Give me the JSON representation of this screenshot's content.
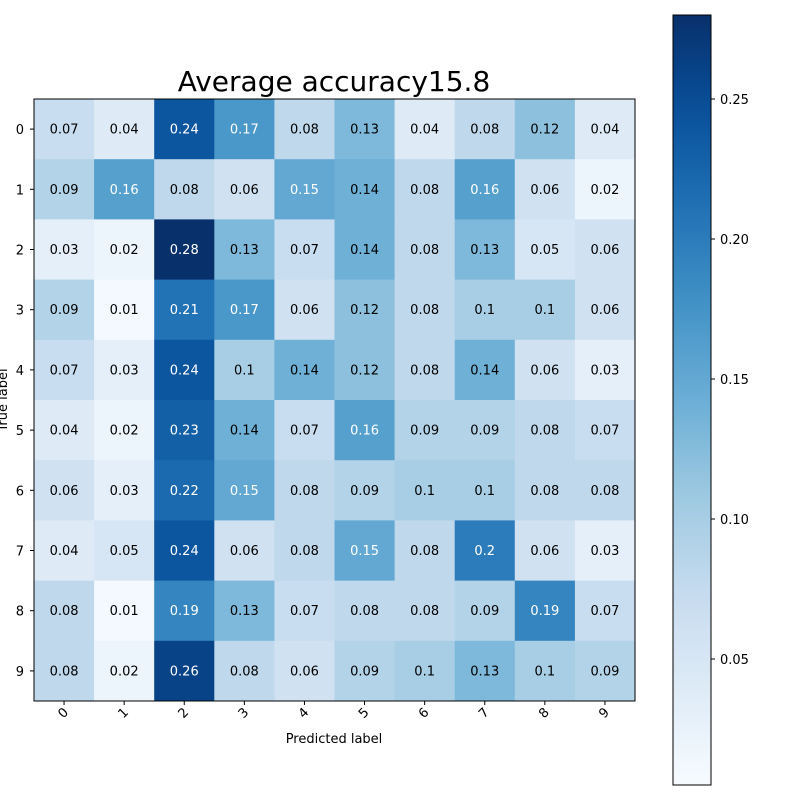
{
  "chart_data": {
    "type": "heatmap",
    "title": "Average accuracy15.8",
    "xlabel": "Predicted label",
    "ylabel": "True label",
    "x_categories": [
      "0",
      "1",
      "2",
      "3",
      "4",
      "5",
      "6",
      "7",
      "8",
      "9"
    ],
    "y_categories": [
      "0",
      "1",
      "2",
      "3",
      "4",
      "5",
      "6",
      "7",
      "8",
      "9"
    ],
    "values": [
      [
        0.07,
        0.04,
        0.24,
        0.17,
        0.08,
        0.13,
        0.04,
        0.08,
        0.12,
        0.04
      ],
      [
        0.09,
        0.16,
        0.08,
        0.06,
        0.15,
        0.14,
        0.08,
        0.16,
        0.06,
        0.02
      ],
      [
        0.03,
        0.02,
        0.28,
        0.13,
        0.07,
        0.14,
        0.08,
        0.13,
        0.05,
        0.06
      ],
      [
        0.09,
        0.01,
        0.21,
        0.17,
        0.06,
        0.12,
        0.08,
        0.1,
        0.1,
        0.06
      ],
      [
        0.07,
        0.03,
        0.24,
        0.1,
        0.14,
        0.12,
        0.08,
        0.14,
        0.06,
        0.03
      ],
      [
        0.04,
        0.02,
        0.23,
        0.14,
        0.07,
        0.16,
        0.09,
        0.09,
        0.08,
        0.07
      ],
      [
        0.06,
        0.03,
        0.22,
        0.15,
        0.08,
        0.09,
        0.1,
        0.1,
        0.08,
        0.08
      ],
      [
        0.04,
        0.05,
        0.24,
        0.06,
        0.08,
        0.15,
        0.08,
        0.2,
        0.06,
        0.03
      ],
      [
        0.08,
        0.01,
        0.19,
        0.13,
        0.07,
        0.08,
        0.08,
        0.09,
        0.19,
        0.07
      ],
      [
        0.08,
        0.02,
        0.26,
        0.08,
        0.06,
        0.09,
        0.1,
        0.13,
        0.1,
        0.09
      ]
    ],
    "colorbar": {
      "colormap": "Blues",
      "range": [
        0.005,
        0.28
      ],
      "ticks": [
        0.05,
        0.1,
        0.15,
        0.2,
        0.25
      ],
      "tick_labels": [
        "0.05",
        "0.10",
        "0.15",
        "0.20",
        "0.25"
      ]
    },
    "grid": false
  }
}
